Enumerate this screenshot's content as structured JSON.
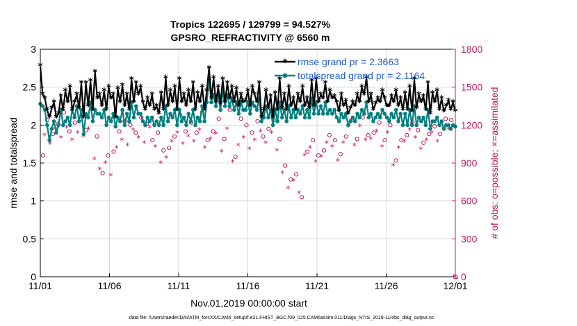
{
  "chart_data": {
    "type": "line",
    "title": [
      "Tropics 122695 / 129799 = 94.527%",
      "GPSRO_REFRACTIVITY @ 6560 m"
    ],
    "xlabel": "Nov.01,2019 00:00:00 start",
    "ylabel": "rmse and totalspread",
    "y2label": "# of obs: o=possible; ×=assimilated",
    "xticks": [
      "11/01",
      "11/06",
      "11/11",
      "11/16",
      "11/21",
      "11/26",
      "12/01"
    ],
    "yticks": [
      "0",
      "0.5",
      "1",
      "1.5",
      "2",
      "2.5",
      "3"
    ],
    "y2ticks": [
      "0",
      "300",
      "600",
      "900",
      "1200",
      "1500",
      "1800"
    ],
    "xlim": [
      0,
      30
    ],
    "ylim": [
      0,
      3
    ],
    "y2lim": [
      0,
      1800
    ],
    "colors": {
      "rmse": "#000000",
      "spread": "#00807f",
      "obs": "#c2185b",
      "legend_text": "#1f5bd6"
    },
    "footnote": "data file: /Users/raeder/DAI/ATM_forcXX/CAM6_setup/f.e21.FHIST_BGC.f09_025.CAM6assim.011/Diags_NTrS_2019-11/obs_diag_output.nc",
    "series": [
      {
        "name": "rmse grand pr = 2.3663",
        "values": [
          2.78,
          2.4,
          2.35,
          2.2,
          2.1,
          2.22,
          2.3,
          2.1,
          2.15,
          2.38,
          2.2,
          2.45,
          2.3,
          2.5,
          2.2,
          2.3,
          2.4,
          2.22,
          2.55,
          2.1,
          2.55,
          2.25,
          2.58,
          2.2,
          2.7,
          2.35,
          2.4,
          2.25,
          2.45,
          2.2,
          2.5,
          2.35,
          2.4,
          2.1,
          2.48,
          2.3,
          2.52,
          2.25,
          2.4,
          2.2,
          2.6,
          2.3,
          2.55,
          2.4,
          2.5,
          2.3,
          2.2,
          2.35,
          2.25,
          2.4,
          2.2,
          2.25,
          2.15,
          2.42,
          2.2,
          2.62,
          2.25,
          2.45,
          2.3,
          2.5,
          2.2,
          2.6,
          2.3,
          2.4,
          2.25,
          2.45,
          2.3,
          2.55,
          2.2,
          2.42,
          2.3,
          2.5,
          2.2,
          2.45,
          2.75,
          2.35,
          2.62,
          2.3,
          2.5,
          2.28,
          2.6,
          2.3,
          2.55,
          2.35,
          2.5,
          2.3,
          2.48,
          2.25,
          2.4,
          2.3,
          2.32,
          2.45,
          2.25,
          2.5,
          2.4,
          2.3,
          2.55,
          2.1,
          2.2,
          2.45,
          2.22,
          2.38,
          2.1,
          2.42,
          2.2,
          2.6,
          2.22,
          2.4,
          2.2,
          2.5,
          2.25,
          2.35,
          2.2,
          2.4,
          2.3,
          2.5,
          2.25,
          2.35,
          2.22,
          2.58,
          2.25,
          2.6,
          2.3,
          2.4,
          2.35,
          2.55,
          2.3,
          2.45,
          2.35,
          2.38,
          2.3,
          2.18,
          2.4,
          2.25,
          2.32,
          2.15,
          2.22,
          2.3,
          2.25,
          2.4,
          2.3,
          2.5,
          2.4,
          2.62,
          2.3,
          2.4,
          2.2,
          2.28,
          2.35,
          2.3,
          2.45,
          2.35,
          2.25,
          2.25,
          2.38,
          2.3,
          2.45,
          2.25,
          2.35,
          2.2,
          2.42,
          2.2,
          2.5,
          2.18,
          2.6,
          2.22,
          2.4,
          2.3,
          2.38,
          2.2,
          2.55,
          2.15,
          2.42,
          2.3,
          2.45,
          2.2,
          2.35,
          2.18,
          2.25,
          2.32,
          2.2,
          2.3,
          2.18
        ]
      },
      {
        "name": "totalspread grand pr = 2.1164",
        "values": [
          2.28,
          2.25,
          2.2,
          2.0,
          1.8,
          1.95,
          2.05,
          1.9,
          2.0,
          2.2,
          2.0,
          2.05,
          2.1,
          2.0,
          2.2,
          2.1,
          2.25,
          2.05,
          2.2,
          1.88,
          2.15,
          2.1,
          2.3,
          2.05,
          2.2,
          2.15,
          2.15,
          2.1,
          2.2,
          2.0,
          2.1,
          2.05,
          2.15,
          1.98,
          2.1,
          2.05,
          2.2,
          2.0,
          2.15,
          2.05,
          2.3,
          2.1,
          2.25,
          2.15,
          2.15,
          2.05,
          2.0,
          2.1,
          2.05,
          2.1,
          2.0,
          2.05,
          2.0,
          2.1,
          2.0,
          2.25,
          2.05,
          2.15,
          2.1,
          2.2,
          2.0,
          2.2,
          2.05,
          2.1,
          2.0,
          2.15,
          2.05,
          2.2,
          2.0,
          2.1,
          2.05,
          2.25,
          2.05,
          2.3,
          2.6,
          2.3,
          2.4,
          2.25,
          2.4,
          2.2,
          2.45,
          2.25,
          2.4,
          2.25,
          2.35,
          2.2,
          2.3,
          2.15,
          2.3,
          2.2,
          2.2,
          2.3,
          2.15,
          2.3,
          2.25,
          2.2,
          2.35,
          2.05,
          2.1,
          2.25,
          2.1,
          2.2,
          2.0,
          2.2,
          2.05,
          2.3,
          2.1,
          2.2,
          2.05,
          2.25,
          2.1,
          2.2,
          2.1,
          2.2,
          2.15,
          2.25,
          2.1,
          2.2,
          2.1,
          2.35,
          2.15,
          2.3,
          2.15,
          2.25,
          2.15,
          2.3,
          2.15,
          2.2,
          2.15,
          2.2,
          2.1,
          2.05,
          2.15,
          2.1,
          2.15,
          2.0,
          2.05,
          2.1,
          2.05,
          2.15,
          2.1,
          2.2,
          2.15,
          2.3,
          2.1,
          2.15,
          2.05,
          2.1,
          2.15,
          2.1,
          2.2,
          2.15,
          2.1,
          2.05,
          2.15,
          2.1,
          2.2,
          2.05,
          2.15,
          2.0,
          2.15,
          2.0,
          2.2,
          2.0,
          2.25,
          2.0,
          2.1,
          2.05,
          2.1,
          2.0,
          2.2,
          1.95,
          2.05,
          2.05,
          2.1,
          2.0,
          2.05,
          1.95,
          2.0,
          2.0,
          1.95,
          2.0,
          1.98
        ]
      },
      {
        "name": "possible",
        "axis": "right",
        "x": [
          0.2,
          0.5,
          0.9,
          1.3,
          1.7,
          2.1,
          2.5,
          2.9,
          3.3,
          3.7,
          4.1,
          4.5,
          4.9,
          5.3,
          5.7,
          6.1,
          6.5,
          6.9,
          7.3,
          7.7,
          8.1,
          8.5,
          8.9,
          9.3,
          9.7,
          10.1,
          10.5,
          10.9,
          11.3,
          11.7,
          12.1,
          12.5,
          12.9,
          13.3,
          13.7,
          14.1,
          14.5,
          14.9,
          15.3,
          15.7,
          16.1,
          16.5,
          16.9,
          17.3,
          17.7,
          18.1,
          18.5,
          18.9,
          19.3,
          19.7,
          20.1,
          20.5,
          20.9,
          21.3,
          21.7,
          22.1,
          22.5,
          22.9,
          23.3,
          23.7,
          24.1,
          24.5,
          24.9,
          25.3,
          25.7,
          26.1,
          26.5,
          26.9,
          27.3,
          27.7,
          28.1,
          28.5,
          28.9,
          29.3,
          29.7
        ],
        "values": [
          960,
          1240,
          1130,
          1210,
          1300,
          1150,
          1220,
          1250,
          1160,
          1330,
          1110,
          820,
          960,
          990,
          1150,
          1230,
          1200,
          1140,
          1260,
          1210,
          1080,
          1140,
          1000,
          1020,
          1110,
          1280,
          1150,
          1220,
          1140,
          1300,
          1080,
          1150,
          1250,
          1090,
          1320,
          950,
          1250,
          1200,
          1140,
          1230,
          1110,
          1170,
          1240,
          1090,
          880,
          770,
          810,
          630,
          990,
          1080,
          960,
          1000,
          1120,
          1080,
          970,
          1110,
          1240,
          1090,
          1260,
          1120,
          1140,
          1220,
          1080,
          1200,
          920,
          1080,
          1120,
          1220,
          1160,
          1060,
          1130,
          1190,
          1130,
          1250,
          1240
        ]
      },
      {
        "name": "assimilated",
        "axis": "right",
        "x": [
          0.3,
          0.7,
          1.1,
          1.5,
          1.9,
          2.3,
          2.7,
          3.1,
          3.5,
          3.9,
          4.3,
          4.7,
          5.1,
          5.5,
          5.9,
          6.3,
          6.7,
          7.1,
          7.5,
          7.9,
          8.3,
          8.7,
          9.1,
          9.5,
          9.9,
          10.3,
          10.7,
          11.1,
          11.5,
          11.9,
          12.3,
          12.7,
          13.1,
          13.5,
          13.9,
          14.3,
          14.7,
          15.1,
          15.5,
          15.9,
          16.3,
          16.7,
          17.1,
          17.5,
          17.9,
          18.3,
          18.7,
          19.1,
          19.5,
          19.9,
          20.3,
          20.7,
          21.1,
          21.5,
          21.9,
          22.3,
          22.7,
          23.1,
          23.5,
          23.9,
          24.3,
          24.7,
          25.1,
          25.5,
          25.9,
          26.3,
          26.7,
          27.1,
          27.5,
          27.9,
          28.3,
          28.7,
          29.1,
          29.5
        ],
        "values": [
          1120,
          1050,
          1170,
          1100,
          1180,
          1080,
          1140,
          1110,
          1170,
          930,
          850,
          900,
          800,
          1020,
          1080,
          1040,
          1160,
          1100,
          1060,
          1180,
          1030,
          900,
          940,
          1070,
          1140,
          1050,
          1110,
          1070,
          1160,
          1020,
          1090,
          1130,
          990,
          1170,
          910,
          1040,
          1100,
          1010,
          1080,
          1150,
          1060,
          1140,
          1000,
          820,
          700,
          760,
          660,
          960,
          1020,
          910,
          950,
          1060,
          1030,
          920,
          1060,
          1190,
          1040,
          1190,
          1080,
          1090,
          1150,
          1030,
          1140,
          880,
          1020,
          1070,
          1160,
          1100,
          1010,
          1080,
          1140,
          1070,
          1180,
          1170
        ]
      }
    ]
  }
}
